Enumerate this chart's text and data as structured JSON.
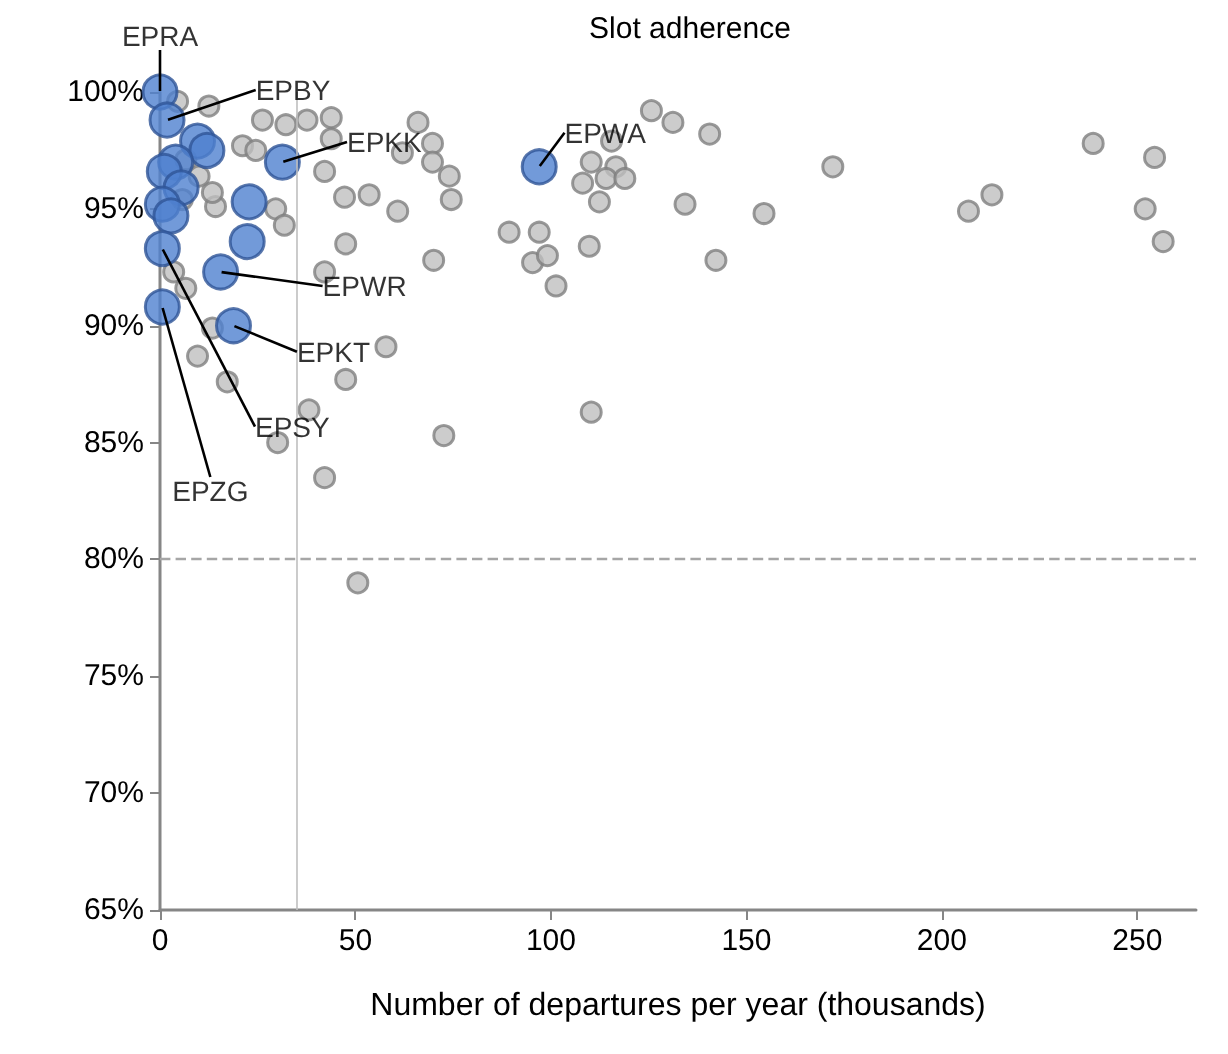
{
  "chart_data": {
    "type": "scatter",
    "title": "Slot adherence",
    "xlabel": "Number of departures per year (thousands)",
    "xlim": [
      0,
      265
    ],
    "xticks": [
      0,
      50,
      100,
      150,
      200,
      250
    ],
    "ylim": [
      65,
      100
    ],
    "yticks": [
      {
        "value": 65,
        "label": "65%"
      },
      {
        "value": 70,
        "label": "70%"
      },
      {
        "value": 75,
        "label": "75%"
      },
      {
        "value": 80,
        "label": "80%"
      },
      {
        "value": 85,
        "label": "85%"
      },
      {
        "value": 90,
        "label": "90%"
      },
      {
        "value": 95,
        "label": "95%"
      },
      {
        "value": 100,
        "label": "100%"
      }
    ],
    "grid": false,
    "marker": "circle",
    "ref_lines": [
      {
        "axis": "y",
        "value": 80,
        "label": null,
        "color": "#a6a6a6",
        "line_style": "dashed"
      },
      {
        "axis": "x",
        "value": 35,
        "label": null,
        "color": "#bfbfbf",
        "line_style": "solid"
      }
    ],
    "series": [
      {
        "color": "#bfbfbf",
        "x": [
          4.5,
          12.5,
          26.2,
          32.2,
          37.6,
          43.8,
          66,
          21.1,
          24.5,
          43.8,
          62,
          69.7,
          74,
          69.7,
          42.1,
          47.2,
          53.5,
          60.8,
          74.5,
          89.3,
          47.5,
          70,
          42.1,
          29.6,
          31.8,
          14.2,
          13.4,
          10,
          6.6,
          5.7,
          3.5,
          6.6,
          13.4,
          9.6,
          17.2,
          47.5,
          57.8,
          38.1,
          30.1,
          72.6,
          42.1,
          50.6,
          97,
          95.3,
          99.1,
          101.3,
          109.8,
          110.3,
          125.7,
          131.2,
          140.6,
          115.5,
          110.3,
          116.6,
          108.1,
          114.1,
          118.9,
          112.4,
          134.3,
          154.5,
          142.2,
          172.1,
          238.7,
          254.4,
          212.8,
          206.8,
          252,
          256.6
        ],
        "values": [
          99.6,
          99.4,
          98.8,
          98.6,
          98.8,
          98.9,
          98.7,
          97.7,
          97.5,
          98.0,
          97.4,
          97.8,
          96.4,
          97.0,
          96.6,
          95.5,
          95.6,
          94.9,
          95.4,
          94.0,
          93.5,
          92.8,
          92.3,
          95.0,
          94.3,
          95.1,
          95.7,
          96.4,
          97.1,
          95.4,
          92.3,
          91.6,
          89.9,
          88.7,
          87.6,
          87.7,
          89.1,
          86.4,
          85.0,
          85.3,
          83.5,
          79.0,
          94.0,
          92.7,
          93.0,
          91.7,
          93.4,
          86.3,
          99.2,
          98.7,
          98.2,
          97.9,
          97.0,
          96.8,
          96.1,
          96.3,
          96.3,
          95.3,
          95.2,
          94.8,
          92.8,
          96.8,
          97.8,
          97.2,
          95.6,
          94.9,
          95.0,
          93.6
        ]
      },
      {
        "color": "#4f81d0",
        "x": [
          0,
          1.8,
          9.6,
          12,
          31.3,
          4,
          1.1,
          5.4,
          22.8,
          0.6,
          2.8,
          22.3,
          0.6,
          15.5,
          0.6,
          18.8,
          97
        ],
        "values": [
          100,
          98.8,
          97.9,
          97.5,
          97.0,
          97.0,
          96.6,
          95.9,
          95.3,
          95.2,
          94.7,
          93.6,
          93.3,
          92.3,
          90.8,
          90.0,
          96.8
        ]
      }
    ],
    "annotations": [
      {
        "text": "EPRA",
        "x": 0,
        "y": 100
      },
      {
        "text": "EPBY",
        "x": 1.8,
        "y": 98.8
      },
      {
        "text": "EPKK",
        "x": 31.3,
        "y": 97.0
      },
      {
        "text": "EPWA",
        "x": 97,
        "y": 96.8
      },
      {
        "text": "EPWR",
        "x": 15.5,
        "y": 92.3
      },
      {
        "text": "EPKT",
        "x": 18.8,
        "y": 90.0
      },
      {
        "text": "EPSY",
        "x": 0.6,
        "y": 93.3
      },
      {
        "text": "EPZG",
        "x": 0.6,
        "y": 90.8
      }
    ]
  }
}
